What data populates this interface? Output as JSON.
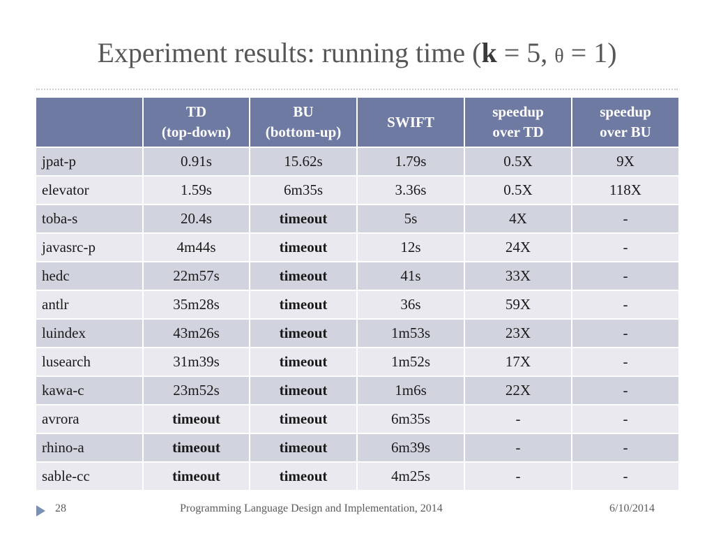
{
  "slide": {
    "title_prefix": "Experiment results: running time (",
    "title_k": "k",
    "title_mid": " = 5, ",
    "title_theta": "θ",
    "title_suffix": " = 1)",
    "page_number": "28",
    "footer_text": "Programming Language Design and Implementation, 2014",
    "date": "6/10/2014"
  },
  "table": {
    "headers": [
      [
        "",
        ""
      ],
      [
        "TD",
        "(top-down)"
      ],
      [
        "BU",
        "(bottom-up)"
      ],
      [
        "SWIFT",
        ""
      ],
      [
        "speedup",
        "over TD"
      ],
      [
        "speedup",
        "over BU"
      ]
    ],
    "rows": [
      [
        "jpat-p",
        "0.91s",
        "15.62s",
        "1.79s",
        "0.5X",
        "9X"
      ],
      [
        "elevator",
        "1.59s",
        "6m35s",
        "3.36s",
        "0.5X",
        "118X"
      ],
      [
        "toba-s",
        "20.4s",
        "timeout",
        "5s",
        "4X",
        "-"
      ],
      [
        "javasrc-p",
        "4m44s",
        "timeout",
        "12s",
        "24X",
        "-"
      ],
      [
        "hedc",
        "22m57s",
        "timeout",
        "41s",
        "33X",
        "-"
      ],
      [
        "antlr",
        "35m28s",
        "timeout",
        "36s",
        "59X",
        "-"
      ],
      [
        "luindex",
        "43m26s",
        "timeout",
        "1m53s",
        "23X",
        "-"
      ],
      [
        "lusearch",
        "31m39s",
        "timeout",
        "1m52s",
        "17X",
        "-"
      ],
      [
        "kawa-c",
        "23m52s",
        "timeout",
        "1m6s",
        "22X",
        "-"
      ],
      [
        "avrora",
        "timeout",
        "timeout",
        "6m35s",
        "-",
        "-"
      ],
      [
        "rhino-a",
        "timeout",
        "timeout",
        "6m39s",
        "-",
        "-"
      ],
      [
        "sable-cc",
        "timeout",
        "timeout",
        "4m25s",
        "-",
        "-"
      ]
    ]
  },
  "colors": {
    "header_bg": "#6e7aa1",
    "row_odd": "#d1d4df",
    "row_even": "#e9e9ef",
    "title_text": "#575757",
    "footer_arrow": "#7b8fb5"
  },
  "icons": {
    "footer_marker": "triangle-right-icon"
  }
}
